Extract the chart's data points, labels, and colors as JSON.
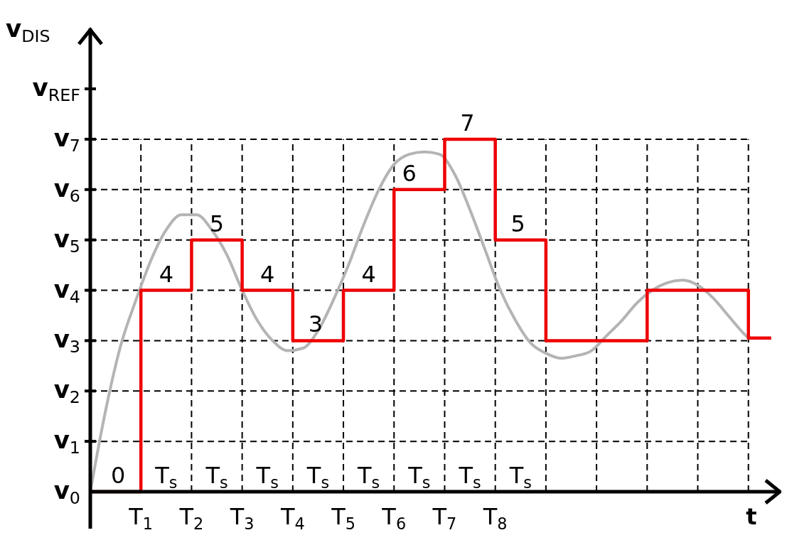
{
  "chart_data": {
    "type": "step",
    "xlabel": "t",
    "ylabel": "v$_{DIS}$",
    "xlim": [
      0,
      13.65
    ],
    "ylim": [
      0,
      9.2
    ],
    "xticks": [
      {
        "value": 1,
        "label": "T$_{1}$"
      },
      {
        "value": 2,
        "label": "T$_{2}$"
      },
      {
        "value": 3,
        "label": "T$_{3}$"
      },
      {
        "value": 4,
        "label": "T$_{4}$"
      },
      {
        "value": 5,
        "label": "T$_{5}$"
      },
      {
        "value": 6,
        "label": "T$_{6}$"
      },
      {
        "value": 7,
        "label": "T$_{7}$"
      },
      {
        "value": 8,
        "label": "T$_{8}$"
      },
      {
        "value": 9,
        "label": null
      },
      {
        "value": 10,
        "label": null
      },
      {
        "value": 11,
        "label": null
      },
      {
        "value": 12,
        "label": null
      },
      {
        "value": 13,
        "label": null
      }
    ],
    "yticks": [
      {
        "value": 0,
        "label": "v$_{0}$"
      },
      {
        "value": 1,
        "label": "v$_{1}$"
      },
      {
        "value": 2,
        "label": "v$_{2}$"
      },
      {
        "value": 3,
        "label": "v$_{3}$"
      },
      {
        "value": 4,
        "label": "v$_{4}$"
      },
      {
        "value": 5,
        "label": "v$_{5}$"
      },
      {
        "value": 6,
        "label": "v$_{6}$"
      },
      {
        "value": 7,
        "label": "v$_{7}$"
      },
      {
        "value": 8,
        "label": "v$_{REF}$"
      }
    ],
    "grid": true,
    "series": [
      {
        "type": "line",
        "color": "#b4b4b4",
        "x": [
          0,
          0.3,
          0.6,
          0.9,
          1.2,
          1.5,
          1.8,
          2.1,
          2.4,
          2.7,
          3.0,
          3.3,
          3.6,
          3.9,
          4.2,
          4.5,
          4.8,
          5.1,
          5.4,
          5.7,
          6.0,
          6.3,
          6.6,
          6.9,
          7.2,
          7.5,
          7.8,
          8.1,
          8.4,
          8.7,
          9.0,
          9.3,
          9.6,
          9.9,
          10.2,
          10.5,
          10.8,
          11.1,
          11.4,
          11.7,
          12.0,
          12.3,
          12.6,
          12.9,
          13.0
        ],
        "values": [
          0,
          1.6,
          2.9,
          3.8,
          4.6,
          5.2,
          5.5,
          5.5,
          5.2,
          4.7,
          4.0,
          3.4,
          3.0,
          2.8,
          2.85,
          3.2,
          3.8,
          4.5,
          5.3,
          6.0,
          6.5,
          6.7,
          6.75,
          6.7,
          6.3,
          5.6,
          4.8,
          4.0,
          3.4,
          2.95,
          2.75,
          2.65,
          2.7,
          2.8,
          3.1,
          3.4,
          3.75,
          4.0,
          4.15,
          4.2,
          4.1,
          3.85,
          3.5,
          3.15,
          3.05
        ]
      },
      {
        "color": "#ee0000",
        "x": [
          0,
          1,
          2,
          3,
          4,
          5,
          6,
          7,
          8,
          9,
          10,
          11,
          12,
          13,
          13.45
        ],
        "values": [
          0,
          4,
          5,
          4,
          3,
          4,
          6,
          7,
          5,
          3,
          3,
          4,
          4,
          3.05,
          3.05
        ]
      }
    ],
    "annotations": [
      {
        "text": "0",
        "x": 0.55,
        "y": 0
      },
      {
        "text": "4",
        "x": 1.5,
        "y": 4
      },
      {
        "text": "5",
        "x": 2.5,
        "y": 5
      },
      {
        "text": "4",
        "x": 3.5,
        "y": 4
      },
      {
        "text": "3",
        "x": 4.45,
        "y": 3
      },
      {
        "text": "4",
        "x": 5.5,
        "y": 4
      },
      {
        "text": "6",
        "x": 6.3,
        "y": 6
      },
      {
        "text": "7",
        "x": 7.45,
        "y": 7
      },
      {
        "text": "5",
        "x": 8.45,
        "y": 5
      },
      "T$_{s}$",
      "T$_{s}$",
      "T$_{s}$",
      "T$_{s}$",
      "T$_{s}$",
      "T$_{s}$",
      "T$_{s}$",
      "T$_{s}$"
    ]
  }
}
